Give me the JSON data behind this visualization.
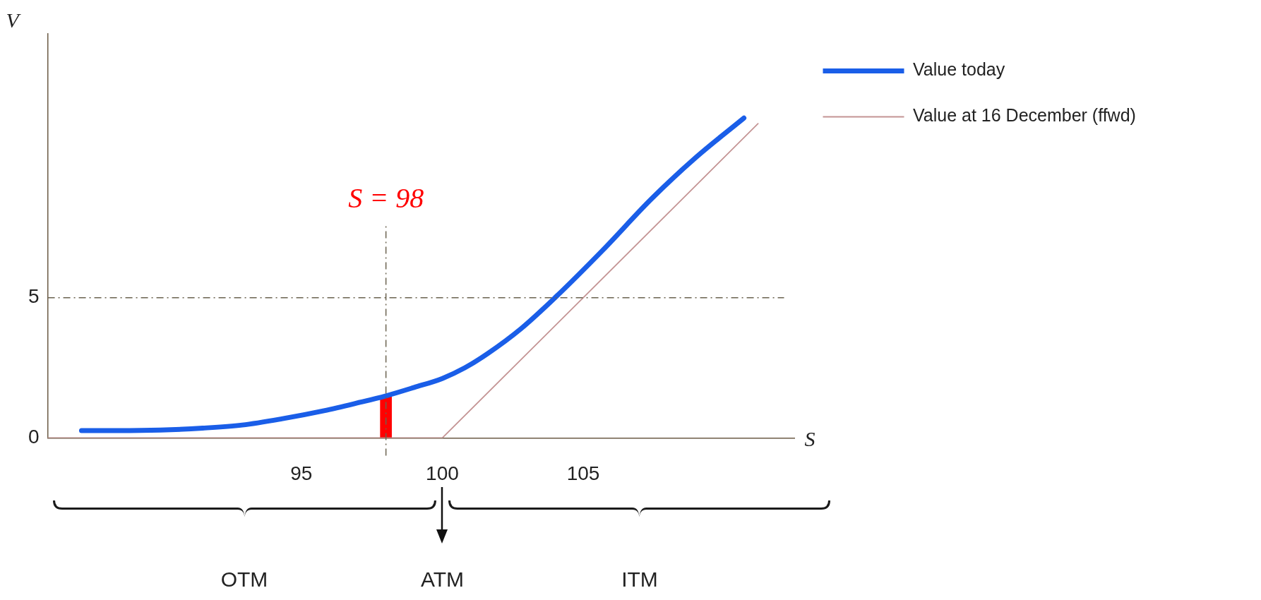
{
  "chart_data": {
    "type": "line",
    "xlabel": "S",
    "ylabel": "V",
    "xlim": [
      86,
      112.5
    ],
    "xticks": [
      95,
      100,
      105
    ],
    "ylim": [
      0,
      14.4
    ],
    "yticks": [
      0,
      5
    ],
    "grid": false,
    "legend": "top right",
    "line_style": "solid",
    "series": [
      {
        "name": "Value today",
        "color": "#1a5ee8",
        "x": [
          87.2,
          88.5,
          90,
          91.5,
          92.9,
          94.3,
          95.8,
          97,
          98,
          99,
          100,
          100.8,
          101.6,
          102.8,
          104,
          105.7,
          107.4,
          109,
          110.7
        ],
        "values": [
          0.26,
          0.26,
          0.28,
          0.35,
          0.46,
          0.68,
          0.97,
          1.25,
          1.5,
          1.8,
          2.12,
          2.5,
          3.0,
          3.9,
          5.0,
          6.7,
          8.5,
          10.0,
          11.4
        ]
      },
      {
        "name": "Value at 16 December (ffwd)",
        "color": "#c49494",
        "x": [
          86,
          100,
          111.2
        ],
        "values": [
          0,
          0,
          11.2
        ]
      },
      {
        "type": "bar",
        "color": "#ff0000",
        "x": [
          98
        ],
        "values": [
          1.5
        ]
      }
    ],
    "ref_lines": [
      {
        "axis": "x",
        "value": 98,
        "label": "S = 98",
        "color": "#6b6350"
      },
      {
        "axis": "y",
        "value": 5,
        "color": "#6b6350"
      }
    ],
    "annotations": [
      "OTM",
      "ATM",
      "ITM"
    ]
  }
}
